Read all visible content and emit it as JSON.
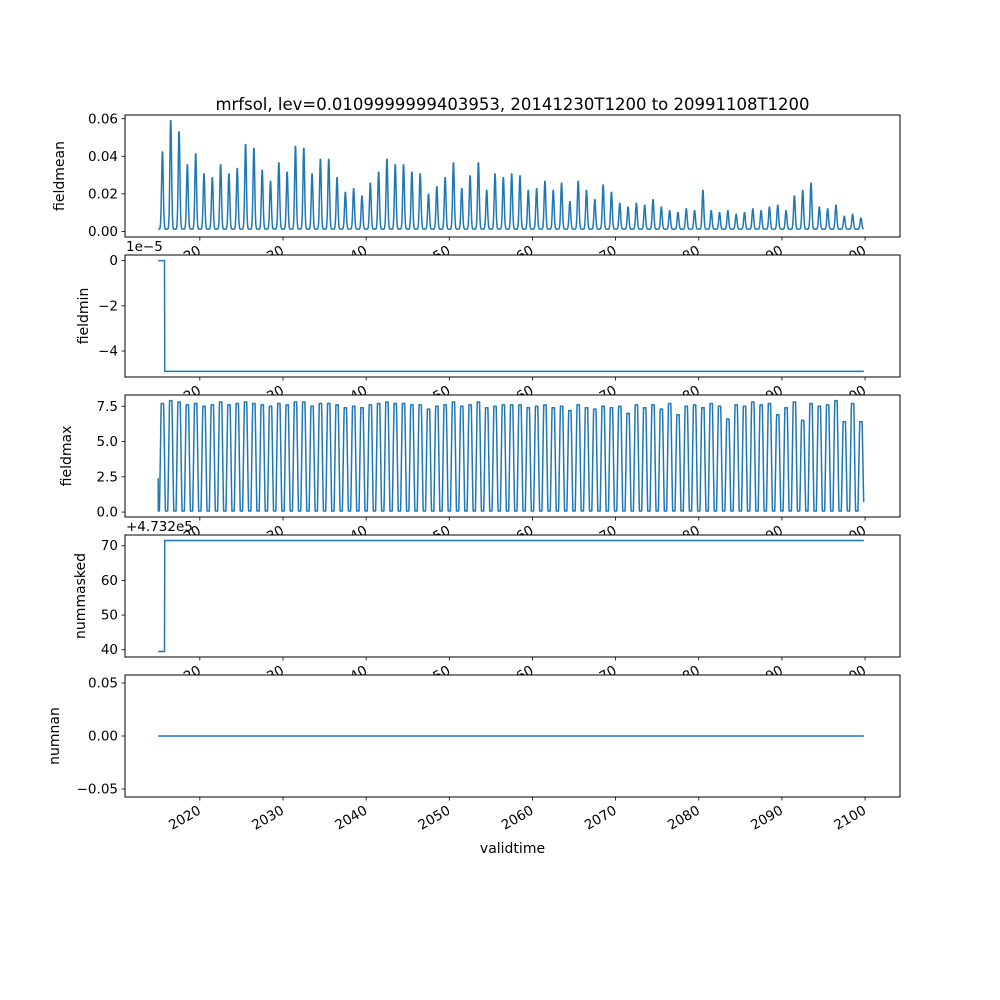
{
  "title": "mrfsol, lev=0.0109999999403953, 20141230T1200 to 20991108T1200",
  "xlabel": "validtime",
  "line_color": "#1f77b4",
  "axes_color": "#000000",
  "background_color": "#ffffff",
  "x_domain": {
    "start": 2014.99,
    "end": 2099.85,
    "xlim": [
      2011.0,
      2104.2
    ]
  },
  "xticks": [
    {
      "v": 2020,
      "label": "2020"
    },
    {
      "v": 2030,
      "label": "2030"
    },
    {
      "v": 2040,
      "label": "2040"
    },
    {
      "v": 2050,
      "label": "2050"
    },
    {
      "v": 2060,
      "label": "2060"
    },
    {
      "v": 2070,
      "label": "2070"
    },
    {
      "v": 2080,
      "label": "2080"
    },
    {
      "v": 2090,
      "label": "2090"
    },
    {
      "v": 2100,
      "label": "2100"
    }
  ],
  "chart_data": [
    {
      "type": "line",
      "name": "fieldmean",
      "ylabel": "fieldmean",
      "ylim": [
        -0.003,
        0.062
      ],
      "yticks": [
        {
          "v": 0.0,
          "label": "0.00"
        },
        {
          "v": 0.02,
          "label": "0.02"
        },
        {
          "v": 0.04,
          "label": "0.04"
        },
        {
          "v": 0.06,
          "label": "0.06"
        }
      ],
      "offset_text": "",
      "series": {
        "kind": "annual_spikes",
        "year_start": 2015,
        "baseline": 0.0012,
        "spike_width": 0.14,
        "peaks": [
          0.042,
          0.059,
          0.053,
          0.035,
          0.041,
          0.03,
          0.028,
          0.035,
          0.03,
          0.033,
          0.046,
          0.044,
          0.032,
          0.026,
          0.036,
          0.031,
          0.045,
          0.044,
          0.03,
          0.038,
          0.038,
          0.028,
          0.02,
          0.022,
          0.018,
          0.025,
          0.031,
          0.038,
          0.035,
          0.035,
          0.031,
          0.03,
          0.019,
          0.023,
          0.028,
          0.036,
          0.022,
          0.029,
          0.036,
          0.021,
          0.03,
          0.028,
          0.03,
          0.029,
          0.021,
          0.022,
          0.026,
          0.021,
          0.025,
          0.015,
          0.026,
          0.021,
          0.016,
          0.024,
          0.02,
          0.014,
          0.012,
          0.014,
          0.013,
          0.016,
          0.012,
          0.01,
          0.009,
          0.011,
          0.01,
          0.021,
          0.01,
          0.009,
          0.01,
          0.008,
          0.009,
          0.011,
          0.01,
          0.012,
          0.013,
          0.01,
          0.018,
          0.021,
          0.025,
          0.012,
          0.011,
          0.013,
          0.007,
          0.008,
          0.006
        ]
      }
    },
    {
      "type": "line",
      "name": "fieldmin",
      "ylabel": "fieldmin",
      "ylim": [
        -5.15e-05,
        2.5e-06
      ],
      "yticks": [
        {
          "v": 0,
          "label": "0"
        },
        {
          "v": -2e-05,
          "label": "−2"
        },
        {
          "v": -4e-05,
          "label": "−4"
        }
      ],
      "offset_text": "1e−5",
      "series": {
        "kind": "step",
        "points": [
          [
            2014.99,
            0
          ],
          [
            2015.75,
            0
          ],
          [
            2015.78,
            -4.9e-05
          ],
          [
            2099.85,
            -4.9e-05
          ]
        ]
      }
    },
    {
      "type": "line",
      "name": "fieldmax",
      "ylabel": "fieldmax",
      "ylim": [
        -0.35,
        8.3
      ],
      "yticks": [
        {
          "v": 0.0,
          "label": "0.0"
        },
        {
          "v": 2.5,
          "label": "2.5"
        },
        {
          "v": 5.0,
          "label": "5.0"
        },
        {
          "v": 7.5,
          "label": "7.5"
        }
      ],
      "offset_text": "",
      "series": {
        "kind": "annual_square_wave",
        "year_start": 2015,
        "min": 0.08,
        "start_point": [
          2014.99,
          2.4
        ],
        "maxima": [
          7.7,
          7.9,
          7.8,
          7.6,
          7.7,
          7.5,
          7.6,
          7.8,
          7.6,
          7.7,
          7.8,
          7.7,
          7.6,
          7.5,
          7.7,
          7.6,
          7.8,
          7.8,
          7.5,
          7.7,
          7.7,
          7.6,
          7.4,
          7.5,
          7.4,
          7.6,
          7.7,
          7.8,
          7.7,
          7.7,
          7.6,
          7.6,
          7.3,
          7.5,
          7.6,
          7.8,
          7.5,
          7.6,
          7.8,
          7.4,
          7.5,
          7.6,
          7.6,
          7.6,
          7.4,
          7.5,
          7.6,
          7.4,
          7.5,
          7.2,
          7.6,
          7.4,
          7.3,
          7.5,
          7.4,
          7.5,
          7.0,
          7.6,
          7.4,
          7.6,
          7.3,
          7.7,
          6.9,
          7.5,
          7.6,
          7.4,
          7.7,
          7.5,
          6.6,
          7.6,
          7.5,
          7.8,
          7.6,
          7.7,
          6.9,
          7.4,
          7.8,
          6.5,
          7.7,
          7.5,
          7.6,
          7.9,
          6.4,
          7.7,
          6.4
        ]
      }
    },
    {
      "type": "line",
      "name": "nummasked",
      "ylabel": "nummasked",
      "ylim": [
        473237.9,
        473273.1
      ],
      "yticks": [
        {
          "v": 473240,
          "label": "40"
        },
        {
          "v": 473250,
          "label": "50"
        },
        {
          "v": 473260,
          "label": "60"
        },
        {
          "v": 473270,
          "label": "70"
        }
      ],
      "offset_text": "+4.732e5",
      "series": {
        "kind": "step",
        "points": [
          [
            2014.99,
            473239.5
          ],
          [
            2015.75,
            473239.5
          ],
          [
            2015.78,
            473271.5
          ],
          [
            2099.85,
            473271.5
          ]
        ]
      }
    },
    {
      "type": "line",
      "name": "numnan",
      "ylabel": "numnan",
      "ylim": [
        -0.0575,
        0.0575
      ],
      "yticks": [
        {
          "v": -0.05,
          "label": "−0.05"
        },
        {
          "v": 0.0,
          "label": "0.00"
        },
        {
          "v": 0.05,
          "label": "0.05"
        }
      ],
      "offset_text": "",
      "series": {
        "kind": "step",
        "points": [
          [
            2014.99,
            0
          ],
          [
            2099.85,
            0
          ]
        ]
      }
    }
  ]
}
